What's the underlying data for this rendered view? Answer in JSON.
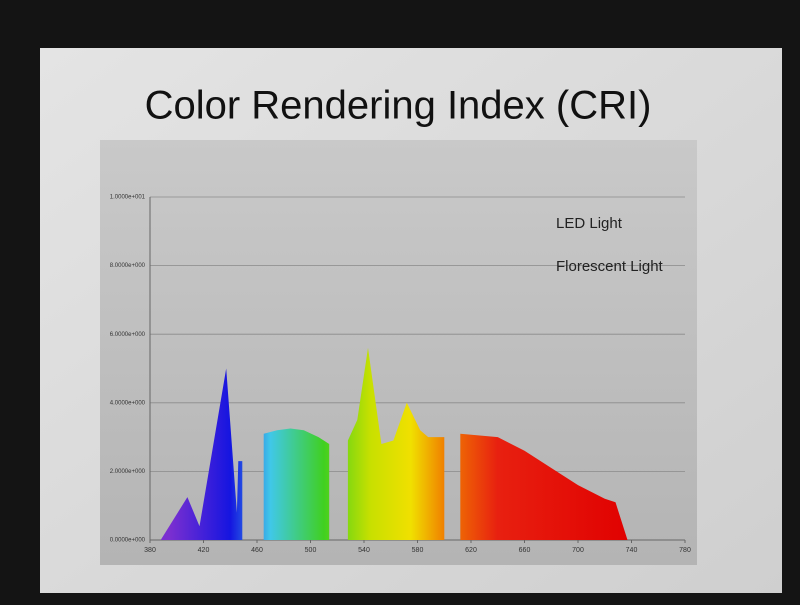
{
  "chart_data": {
    "type": "area",
    "title": "Color Rendering Index (CRI)",
    "annotations": [
      "LED Light",
      "Florescent Light"
    ],
    "x": [
      388,
      408,
      417,
      437,
      445,
      446,
      449,
      449,
      455,
      465,
      465,
      475,
      485,
      495,
      506,
      514,
      514,
      520,
      528,
      528,
      535,
      543,
      553,
      562,
      572,
      582,
      588,
      600,
      600,
      608,
      612,
      612,
      640,
      660,
      680,
      700,
      720,
      728,
      737
    ],
    "values": [
      0,
      1.25,
      0.4,
      5.0,
      0.8,
      2.3,
      2.3,
      0,
      null,
      0,
      3.1,
      3.2,
      3.25,
      3.2,
      3.0,
      2.8,
      0,
      null,
      0,
      2.9,
      3.5,
      5.6,
      2.8,
      2.9,
      4.0,
      3.2,
      3.0,
      3.0,
      0,
      null,
      0,
      3.1,
      3.0,
      2.6,
      2.1,
      1.6,
      1.2,
      1.1,
      0
    ],
    "color_stops": [
      {
        "x": 395,
        "color": "#7a2fd0"
      },
      {
        "x": 440,
        "color": "#1515e0"
      },
      {
        "x": 470,
        "color": "#40c8e8"
      },
      {
        "x": 510,
        "color": "#40d020"
      },
      {
        "x": 545,
        "color": "#c8e000"
      },
      {
        "x": 575,
        "color": "#f0e000"
      },
      {
        "x": 600,
        "color": "#f08000"
      },
      {
        "x": 640,
        "color": "#e82010"
      },
      {
        "x": 740,
        "color": "#e00000"
      }
    ],
    "xlim": [
      380,
      780
    ],
    "xticks": [
      380,
      420,
      460,
      500,
      540,
      580,
      620,
      660,
      700,
      740,
      780
    ],
    "ylim": [
      0,
      10
    ],
    "yticks": [
      {
        "value": 0,
        "label": "0.0000e+000"
      },
      {
        "value": 2,
        "label": "2.0000e+000"
      },
      {
        "value": 4,
        "label": "4.0000e+000"
      },
      {
        "value": 6,
        "label": "6.0000e+000"
      },
      {
        "value": 8,
        "label": "8.0000e+000"
      },
      {
        "value": 10,
        "label": "1.0000e+001"
      }
    ],
    "grid": true
  }
}
